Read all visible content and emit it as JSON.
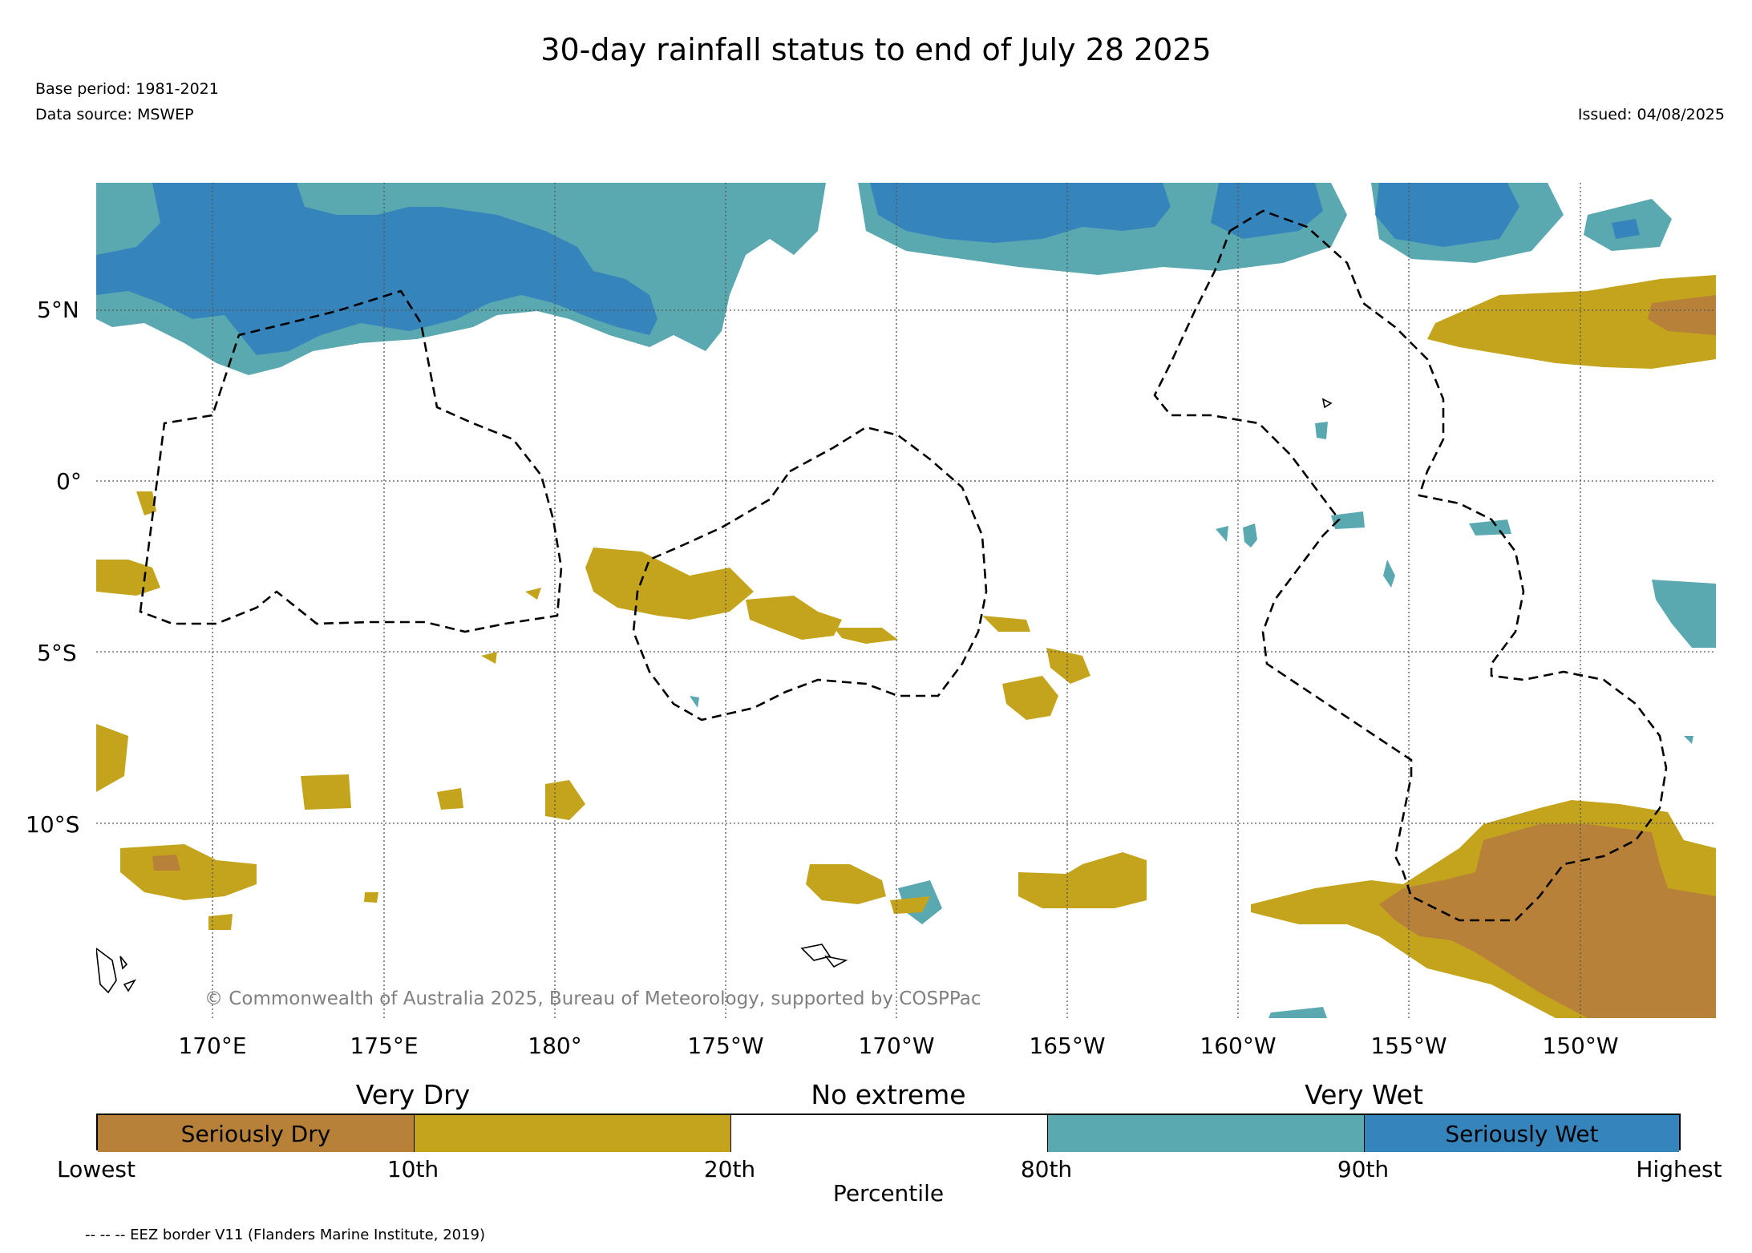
{
  "title": "30-day rainfall status to end of July 28 2025",
  "base_period": "Base period: 1981-2021",
  "data_source": "Data source: MSWEP",
  "issued": "Issued: 04/08/2025",
  "copyright": "© Commonwealth of Australia 2025, Bureau of Meteorology, supported by COSPPac",
  "map": {
    "lon_range": [
      166.7,
      214.2
    ],
    "lat_range": [
      -15.7,
      8.7
    ],
    "lon_ticks": [
      "170°E",
      "175°E",
      "180°",
      "175°W",
      "170°W",
      "165°W",
      "160°W",
      "155°W",
      "150°W"
    ],
    "lat_ticks": [
      "5°N",
      "0°",
      "5°S",
      "10°S"
    ],
    "grid": "dotted",
    "colors": {
      "seriously_dry": "#b8813a",
      "very_dry": "#c4a41c",
      "very_wet": "#5ba9b0",
      "seriously_wet": "#3584bb",
      "no_extreme": "#ffffff"
    }
  },
  "legend": {
    "groups": [
      "Very Dry",
      "No extreme",
      "Very Wet"
    ],
    "segments": [
      {
        "label": "Seriously Dry",
        "color": "#b8813a"
      },
      {
        "label": "",
        "color": "#c4a41c"
      },
      {
        "label": "",
        "color": "#ffffff"
      },
      {
        "label": "",
        "color": "#5ba9b0"
      },
      {
        "label": "Seriously Wet",
        "color": "#3584bb"
      }
    ],
    "ticks": [
      "Lowest",
      "10th",
      "20th",
      "80th",
      "90th",
      "Highest"
    ],
    "axis_label": "Percentile"
  },
  "footnote": "-- -- -- EEZ border V11 (Flanders Marine Institute, 2019)"
}
